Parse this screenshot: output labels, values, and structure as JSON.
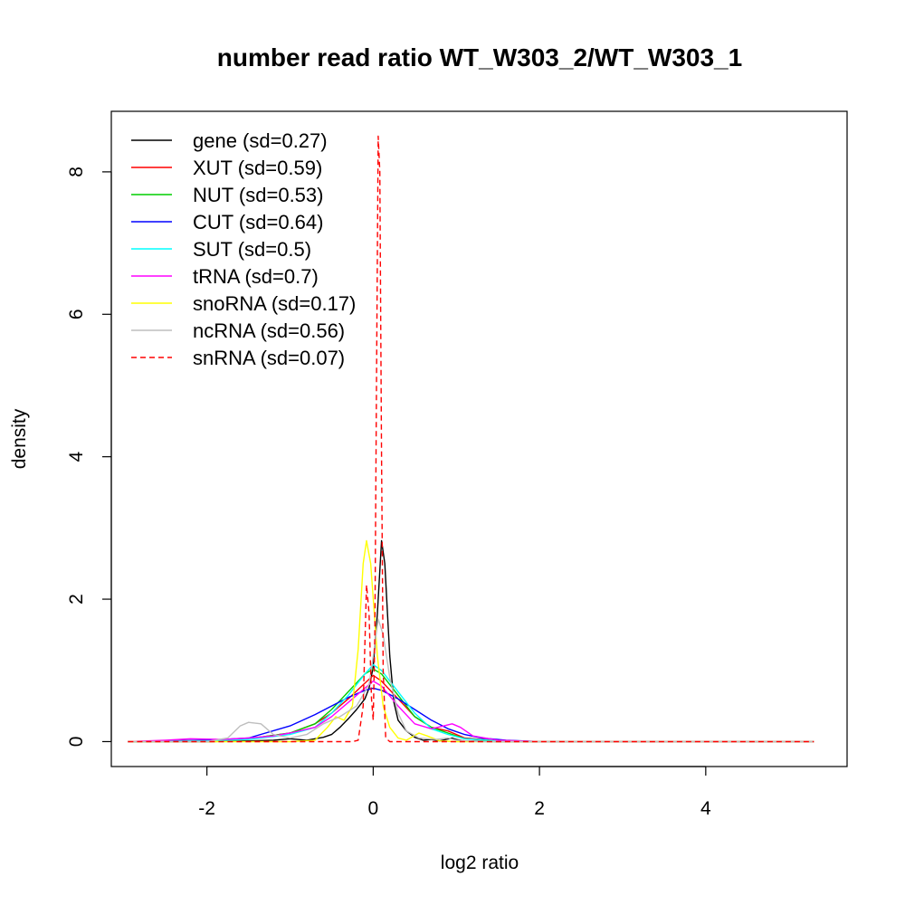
{
  "chart_data": {
    "type": "line",
    "title": "number read ratio WT_W303_2/WT_W303_1",
    "xlabel": "log2 ratio",
    "ylabel": "density",
    "xlim": [
      -3.15,
      5.7
    ],
    "ylim": [
      -0.35,
      8.85
    ],
    "xticks": [
      -2,
      0,
      2,
      4
    ],
    "yticks": [
      0,
      2,
      4,
      6,
      8
    ],
    "xtick_labels": [
      "-2",
      "0",
      "2",
      "4"
    ],
    "ytick_labels": [
      "0",
      "2",
      "4",
      "6",
      "8"
    ],
    "grid": false,
    "legend_position": "top-left",
    "series": [
      {
        "name": "gene (sd=0.27)",
        "color": "#000000",
        "dash": "solid",
        "points": [
          [
            -2.95,
            0
          ],
          [
            -2.0,
            0
          ],
          [
            -1.5,
            0.01
          ],
          [
            -1.2,
            0.02
          ],
          [
            -1.0,
            0.04
          ],
          [
            -0.8,
            0.02
          ],
          [
            -0.6,
            0.06
          ],
          [
            -0.5,
            0.1
          ],
          [
            -0.4,
            0.2
          ],
          [
            -0.3,
            0.32
          ],
          [
            -0.2,
            0.45
          ],
          [
            -0.1,
            0.6
          ],
          [
            -0.05,
            0.75
          ],
          [
            0.0,
            1.05
          ],
          [
            0.05,
            1.8
          ],
          [
            0.1,
            2.82
          ],
          [
            0.14,
            2.5
          ],
          [
            0.2,
            1.2
          ],
          [
            0.25,
            0.55
          ],
          [
            0.3,
            0.3
          ],
          [
            0.4,
            0.15
          ],
          [
            0.5,
            0.06
          ],
          [
            0.6,
            0.02
          ],
          [
            0.7,
            0.03
          ],
          [
            0.8,
            0.01
          ],
          [
            0.95,
            0.05
          ],
          [
            1.0,
            0.03
          ],
          [
            1.1,
            0.01
          ],
          [
            1.5,
            0
          ],
          [
            5.3,
            0
          ]
        ]
      },
      {
        "name": "XUT (sd=0.59)",
        "color": "#ff0000",
        "dash": "solid",
        "points": [
          [
            -2.95,
            0
          ],
          [
            -2.0,
            0.02
          ],
          [
            -1.5,
            0.04
          ],
          [
            -1.0,
            0.12
          ],
          [
            -0.7,
            0.25
          ],
          [
            -0.5,
            0.4
          ],
          [
            -0.3,
            0.6
          ],
          [
            -0.1,
            0.82
          ],
          [
            0.0,
            0.93
          ],
          [
            0.1,
            0.85
          ],
          [
            0.3,
            0.6
          ],
          [
            0.5,
            0.35
          ],
          [
            0.7,
            0.2
          ],
          [
            0.9,
            0.15
          ],
          [
            1.1,
            0.05
          ],
          [
            1.5,
            0.01
          ],
          [
            2.0,
            0
          ],
          [
            5.3,
            0
          ]
        ]
      },
      {
        "name": "NUT (sd=0.53)",
        "color": "#00cd00",
        "dash": "solid",
        "points": [
          [
            -2.95,
            0
          ],
          [
            -2.0,
            0.01
          ],
          [
            -1.5,
            0.04
          ],
          [
            -1.0,
            0.12
          ],
          [
            -0.7,
            0.25
          ],
          [
            -0.5,
            0.45
          ],
          [
            -0.3,
            0.7
          ],
          [
            -0.1,
            0.95
          ],
          [
            0.0,
            1.02
          ],
          [
            0.1,
            0.95
          ],
          [
            0.3,
            0.65
          ],
          [
            0.5,
            0.35
          ],
          [
            0.7,
            0.2
          ],
          [
            0.9,
            0.12
          ],
          [
            1.1,
            0.04
          ],
          [
            1.5,
            0.01
          ],
          [
            2.0,
            0
          ],
          [
            5.3,
            0
          ]
        ]
      },
      {
        "name": "CUT (sd=0.64)",
        "color": "#0000ff",
        "dash": "solid",
        "points": [
          [
            -2.95,
            0
          ],
          [
            -2.0,
            0.02
          ],
          [
            -1.5,
            0.05
          ],
          [
            -1.0,
            0.22
          ],
          [
            -0.7,
            0.38
          ],
          [
            -0.5,
            0.5
          ],
          [
            -0.3,
            0.62
          ],
          [
            -0.1,
            0.72
          ],
          [
            0.0,
            0.75
          ],
          [
            0.1,
            0.72
          ],
          [
            0.3,
            0.6
          ],
          [
            0.5,
            0.45
          ],
          [
            0.7,
            0.3
          ],
          [
            0.9,
            0.18
          ],
          [
            1.1,
            0.1
          ],
          [
            1.3,
            0.05
          ],
          [
            1.6,
            0.02
          ],
          [
            2.0,
            0
          ],
          [
            5.3,
            0
          ]
        ]
      },
      {
        "name": "SUT (sd=0.5)",
        "color": "#00ffff",
        "dash": "solid",
        "points": [
          [
            -2.95,
            0
          ],
          [
            -2.0,
            0.01
          ],
          [
            -1.5,
            0.03
          ],
          [
            -1.0,
            0.1
          ],
          [
            -0.7,
            0.2
          ],
          [
            -0.5,
            0.4
          ],
          [
            -0.3,
            0.65
          ],
          [
            -0.1,
            0.95
          ],
          [
            0.0,
            1.08
          ],
          [
            0.1,
            1.0
          ],
          [
            0.3,
            0.7
          ],
          [
            0.5,
            0.4
          ],
          [
            0.7,
            0.18
          ],
          [
            0.9,
            0.1
          ],
          [
            1.1,
            0.04
          ],
          [
            1.5,
            0.01
          ],
          [
            2.0,
            0
          ],
          [
            5.3,
            0
          ]
        ]
      },
      {
        "name": "tRNA (sd=0.7)",
        "color": "#ff00ff",
        "dash": "solid",
        "points": [
          [
            -2.95,
            0
          ],
          [
            -2.5,
            0.02
          ],
          [
            -2.2,
            0.04
          ],
          [
            -1.8,
            0.03
          ],
          [
            -1.5,
            0.05
          ],
          [
            -1.2,
            0.08
          ],
          [
            -1.0,
            0.12
          ],
          [
            -0.7,
            0.2
          ],
          [
            -0.5,
            0.35
          ],
          [
            -0.3,
            0.55
          ],
          [
            -0.1,
            0.75
          ],
          [
            0.0,
            0.85
          ],
          [
            0.1,
            0.78
          ],
          [
            0.3,
            0.5
          ],
          [
            0.5,
            0.25
          ],
          [
            0.7,
            0.18
          ],
          [
            0.85,
            0.22
          ],
          [
            0.95,
            0.25
          ],
          [
            1.05,
            0.2
          ],
          [
            1.2,
            0.08
          ],
          [
            1.5,
            0.02
          ],
          [
            2.0,
            0
          ],
          [
            5.3,
            0
          ]
        ]
      },
      {
        "name": "snoRNA (sd=0.17)",
        "color": "#ffff00",
        "dash": "solid",
        "points": [
          [
            -2.95,
            0
          ],
          [
            -1.0,
            0
          ],
          [
            -0.7,
            0.02
          ],
          [
            -0.55,
            0.2
          ],
          [
            -0.45,
            0.35
          ],
          [
            -0.35,
            0.3
          ],
          [
            -0.25,
            0.5
          ],
          [
            -0.18,
            1.3
          ],
          [
            -0.12,
            2.5
          ],
          [
            -0.08,
            2.82
          ],
          [
            -0.03,
            2.5
          ],
          [
            0.05,
            1.2
          ],
          [
            0.12,
            0.5
          ],
          [
            0.2,
            0.2
          ],
          [
            0.3,
            0.05
          ],
          [
            0.4,
            0.02
          ],
          [
            0.55,
            0.12
          ],
          [
            0.65,
            0.08
          ],
          [
            0.8,
            0.01
          ],
          [
            1.0,
            0
          ],
          [
            5.3,
            0
          ]
        ]
      },
      {
        "name": "ncRNA (sd=0.56)",
        "color": "#bebebe",
        "dash": "solid",
        "points": [
          [
            -2.95,
            0
          ],
          [
            -2.0,
            0
          ],
          [
            -1.75,
            0.05
          ],
          [
            -1.6,
            0.22
          ],
          [
            -1.5,
            0.27
          ],
          [
            -1.35,
            0.25
          ],
          [
            -1.2,
            0.1
          ],
          [
            -1.0,
            0.05
          ],
          [
            -0.8,
            0.1
          ],
          [
            -0.6,
            0.25
          ],
          [
            -0.4,
            0.35
          ],
          [
            -0.2,
            0.5
          ],
          [
            -0.05,
            0.8
          ],
          [
            0.0,
            1.2
          ],
          [
            0.06,
            1.72
          ],
          [
            0.12,
            1.5
          ],
          [
            0.2,
            0.9
          ],
          [
            0.3,
            0.4
          ],
          [
            0.4,
            0.15
          ],
          [
            0.55,
            0.05
          ],
          [
            0.75,
            0.03
          ],
          [
            0.9,
            0.05
          ],
          [
            1.0,
            0.02
          ],
          [
            1.3,
            0
          ],
          [
            5.3,
            0
          ]
        ]
      },
      {
        "name": "snRNA (sd=0.07)",
        "color": "#ff0000",
        "dash": "dashed",
        "points": [
          [
            -2.95,
            0
          ],
          [
            -0.25,
            0
          ],
          [
            -0.18,
            0.02
          ],
          [
            -0.12,
            0.5
          ],
          [
            -0.08,
            2.2
          ],
          [
            -0.05,
            1.8
          ],
          [
            -0.02,
            0.6
          ],
          [
            0.0,
            0.3
          ],
          [
            0.02,
            1.5
          ],
          [
            0.04,
            5.0
          ],
          [
            0.06,
            8.5
          ],
          [
            0.08,
            8.0
          ],
          [
            0.1,
            4.0
          ],
          [
            0.12,
            1.0
          ],
          [
            0.15,
            0.05
          ],
          [
            0.2,
            0
          ],
          [
            5.3,
            0
          ]
        ]
      }
    ]
  }
}
